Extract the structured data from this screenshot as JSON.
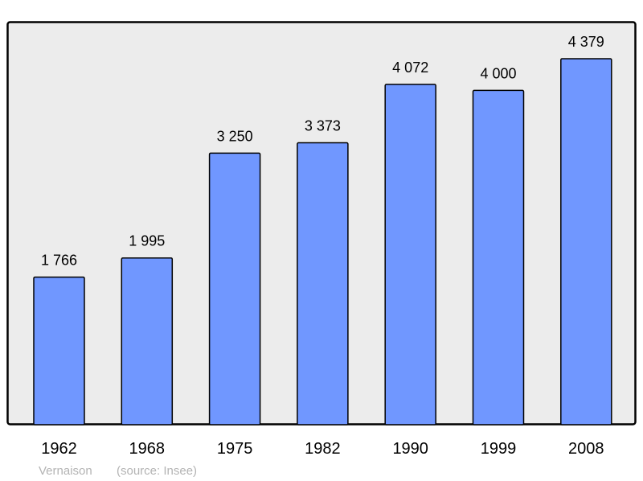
{
  "chart_data": {
    "type": "bar",
    "categories": [
      "1962",
      "1968",
      "1975",
      "1982",
      "1990",
      "1999",
      "2008"
    ],
    "values": [
      1766,
      1995,
      3250,
      3373,
      4072,
      4000,
      4379
    ],
    "value_labels": [
      "1 766",
      "1 995",
      "3 250",
      "3 373",
      "4 072",
      "4 000",
      "4 379"
    ],
    "ylim": [
      0,
      4822
    ],
    "grid": false,
    "bar_color": "#7097ff",
    "background_color": "#ececec",
    "footer": {
      "place": "Vernaison",
      "source": "(source: Insee)"
    }
  }
}
